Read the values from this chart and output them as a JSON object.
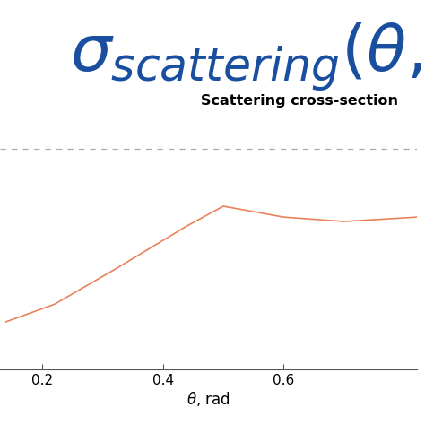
{
  "legend_label": "Scattering cross-section",
  "xlabel": "$\\theta$, rad",
  "xticks": [
    0.2,
    0.4,
    0.6
  ],
  "xlim": [
    0.13,
    0.82
  ],
  "ylim": [
    0.0,
    1.15
  ],
  "line_x": [
    0.14,
    0.22,
    0.32,
    0.44,
    0.5,
    0.6,
    0.7,
    0.82
  ],
  "line_y": [
    0.22,
    0.3,
    0.46,
    0.66,
    0.75,
    0.7,
    0.68,
    0.7
  ],
  "line_color": "#E8825A",
  "dashed_color": "#AAAAAA",
  "title_color": "#1A4FA0",
  "title_fontsize": 52,
  "legend_fontsize": 11.5,
  "xlabel_fontsize": 12,
  "tick_fontsize": 11
}
